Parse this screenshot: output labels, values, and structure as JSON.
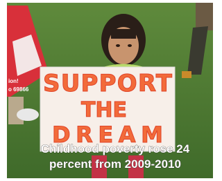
{
  "sign": {
    "lines": [
      "SUPPORT",
      "THE",
      "DREAM"
    ]
  },
  "left_sign": {
    "lines": [
      "ion!",
      "o 69866"
    ]
  },
  "caption": {
    "lines": [
      "Childhood poverty rose 24",
      "percent from 2009-2010"
    ]
  }
}
